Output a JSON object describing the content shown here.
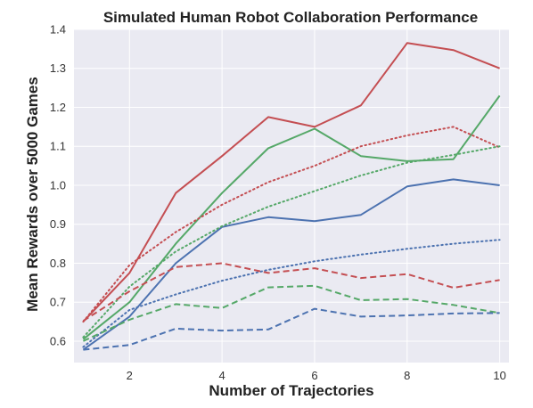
{
  "chart_data": {
    "type": "line",
    "title": "Simulated Human Robot Collaboration Performance",
    "xlabel": "Number of Trajectories",
    "ylabel": "Mean Rewards over 5000 Games",
    "xlim": [
      0.8,
      10.2
    ],
    "ylim": [
      0.545,
      1.4
    ],
    "x_ticks": [
      2,
      4,
      6,
      8,
      10
    ],
    "y_ticks": [
      0.6,
      0.7,
      0.8,
      0.9,
      1.0,
      1.1,
      1.2,
      1.3,
      1.4
    ],
    "grid": true,
    "background": "#eaeaf2",
    "x": [
      1,
      2,
      3,
      4,
      5,
      6,
      7,
      8,
      9,
      10
    ],
    "series": [
      {
        "color": "#c44e52",
        "linestyle": "solid",
        "values": [
          0.65,
          0.775,
          0.98,
          1.075,
          1.175,
          1.15,
          1.205,
          1.365,
          1.347,
          1.3
        ]
      },
      {
        "color": "#55a868",
        "linestyle": "solid",
        "values": [
          0.605,
          0.7,
          0.85,
          0.98,
          1.095,
          1.145,
          1.075,
          1.062,
          1.067,
          1.23
        ]
      },
      {
        "color": "#4c72b0",
        "linestyle": "solid",
        "values": [
          0.578,
          0.663,
          0.8,
          0.893,
          0.918,
          0.908,
          0.924,
          0.997,
          1.015,
          1.0
        ]
      },
      {
        "color": "#c44e52",
        "linestyle": "dotted",
        "values": [
          0.65,
          0.795,
          0.88,
          0.95,
          1.008,
          1.05,
          1.1,
          1.128,
          1.15,
          1.097
        ]
      },
      {
        "color": "#55a868",
        "linestyle": "dotted",
        "values": [
          0.61,
          0.74,
          0.83,
          0.895,
          0.945,
          0.985,
          1.025,
          1.058,
          1.078,
          1.1
        ]
      },
      {
        "color": "#4c72b0",
        "linestyle": "dotted",
        "values": [
          0.585,
          0.68,
          0.72,
          0.755,
          0.783,
          0.805,
          0.822,
          0.837,
          0.85,
          0.86
        ]
      },
      {
        "color": "#c44e52",
        "linestyle": "dashed",
        "values": [
          0.652,
          0.728,
          0.79,
          0.8,
          0.775,
          0.787,
          0.762,
          0.772,
          0.737,
          0.757
        ]
      },
      {
        "color": "#55a868",
        "linestyle": "dashed",
        "values": [
          0.6,
          0.655,
          0.695,
          0.685,
          0.738,
          0.742,
          0.705,
          0.708,
          0.693,
          0.672
        ]
      },
      {
        "color": "#4c72b0",
        "linestyle": "dashed",
        "values": [
          0.578,
          0.59,
          0.632,
          0.627,
          0.63,
          0.683,
          0.663,
          0.666,
          0.671,
          0.672
        ]
      }
    ]
  }
}
